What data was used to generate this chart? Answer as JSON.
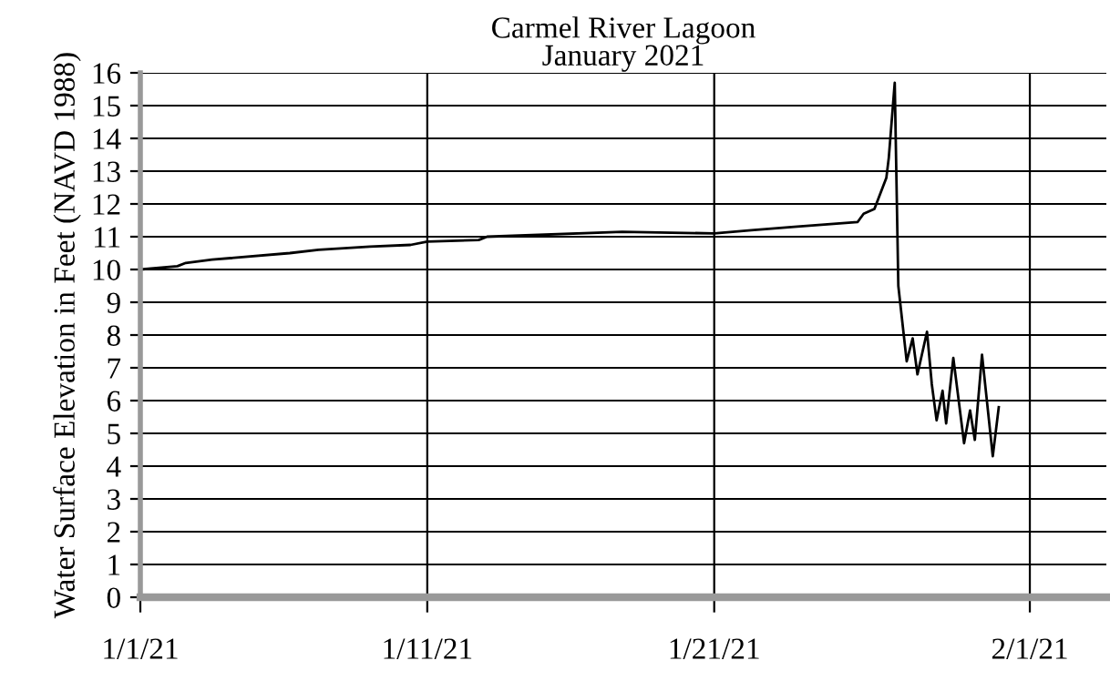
{
  "chart_data": {
    "type": "line",
    "title": "Carmel River Lagoon\nJanuary 2021",
    "ylabel": "Water Surface Elevation in Feet (NAVD 1988)",
    "x": [
      "2021-01-01T00:00",
      "2021-01-02T07:00",
      "2021-01-02T14:00",
      "2021-01-03T12:00",
      "2021-01-06T05:00",
      "2021-01-07T05:00",
      "2021-01-09T00:00",
      "2021-01-10T10:00",
      "2021-01-11T00:00",
      "2021-01-12T19:00",
      "2021-01-13T02:00",
      "2021-01-17T19:00",
      "2021-01-21T00:00",
      "2021-01-22T07:00",
      "2021-01-23T19:00",
      "2021-01-26T00:00",
      "2021-01-26T05:00",
      "2021-01-26T14:00",
      "2021-01-27T00:00",
      "2021-01-27T02:00",
      "2021-01-27T07:00",
      "2021-01-27T10:00",
      "2021-01-27T17:00",
      "2021-01-27T22:00",
      "2021-01-28T02:00",
      "2021-01-28T10:00",
      "2021-01-28T14:00",
      "2021-01-28T18:00",
      "2021-01-28T23:00",
      "2021-01-29T02:00",
      "2021-01-29T08:00",
      "2021-01-29T17:00",
      "2021-01-29T22:00",
      "2021-01-30T02:00",
      "2021-01-30T08:00",
      "2021-01-30T17:00",
      "2021-01-30T22:00"
    ],
    "series": [
      {
        "color": "#000000",
        "values": [
          10.0,
          10.1,
          10.2,
          10.3,
          10.5,
          10.6,
          10.7,
          10.75,
          10.85,
          10.9,
          11.0,
          11.15,
          11.1,
          11.2,
          11.3,
          11.45,
          11.7,
          11.85,
          12.8,
          13.4,
          15.7,
          9.5,
          7.2,
          7.9,
          6.8,
          8.1,
          6.5,
          5.4,
          6.3,
          5.3,
          7.3,
          4.7,
          5.7,
          4.8,
          7.4,
          4.3,
          5.8
        ]
      }
    ],
    "xlim": [
      "2021-01-01",
      "2021-02-03T16:00"
    ],
    "xticks": [
      {
        "value": "2021-01-01",
        "label": "1/1/21"
      },
      {
        "value": "2021-01-11",
        "label": "1/11/21"
      },
      {
        "value": "2021-01-21",
        "label": "1/21/21"
      },
      {
        "value": "2021-02-01",
        "label": "2/1/21"
      }
    ],
    "ylim": [
      0,
      16
    ],
    "yticks": [
      0,
      1,
      2,
      3,
      4,
      5,
      6,
      7,
      8,
      9,
      10,
      11,
      12,
      13,
      14,
      15,
      16
    ],
    "grid": true,
    "legend": false,
    "marker": "none",
    "line_style": "solid"
  }
}
